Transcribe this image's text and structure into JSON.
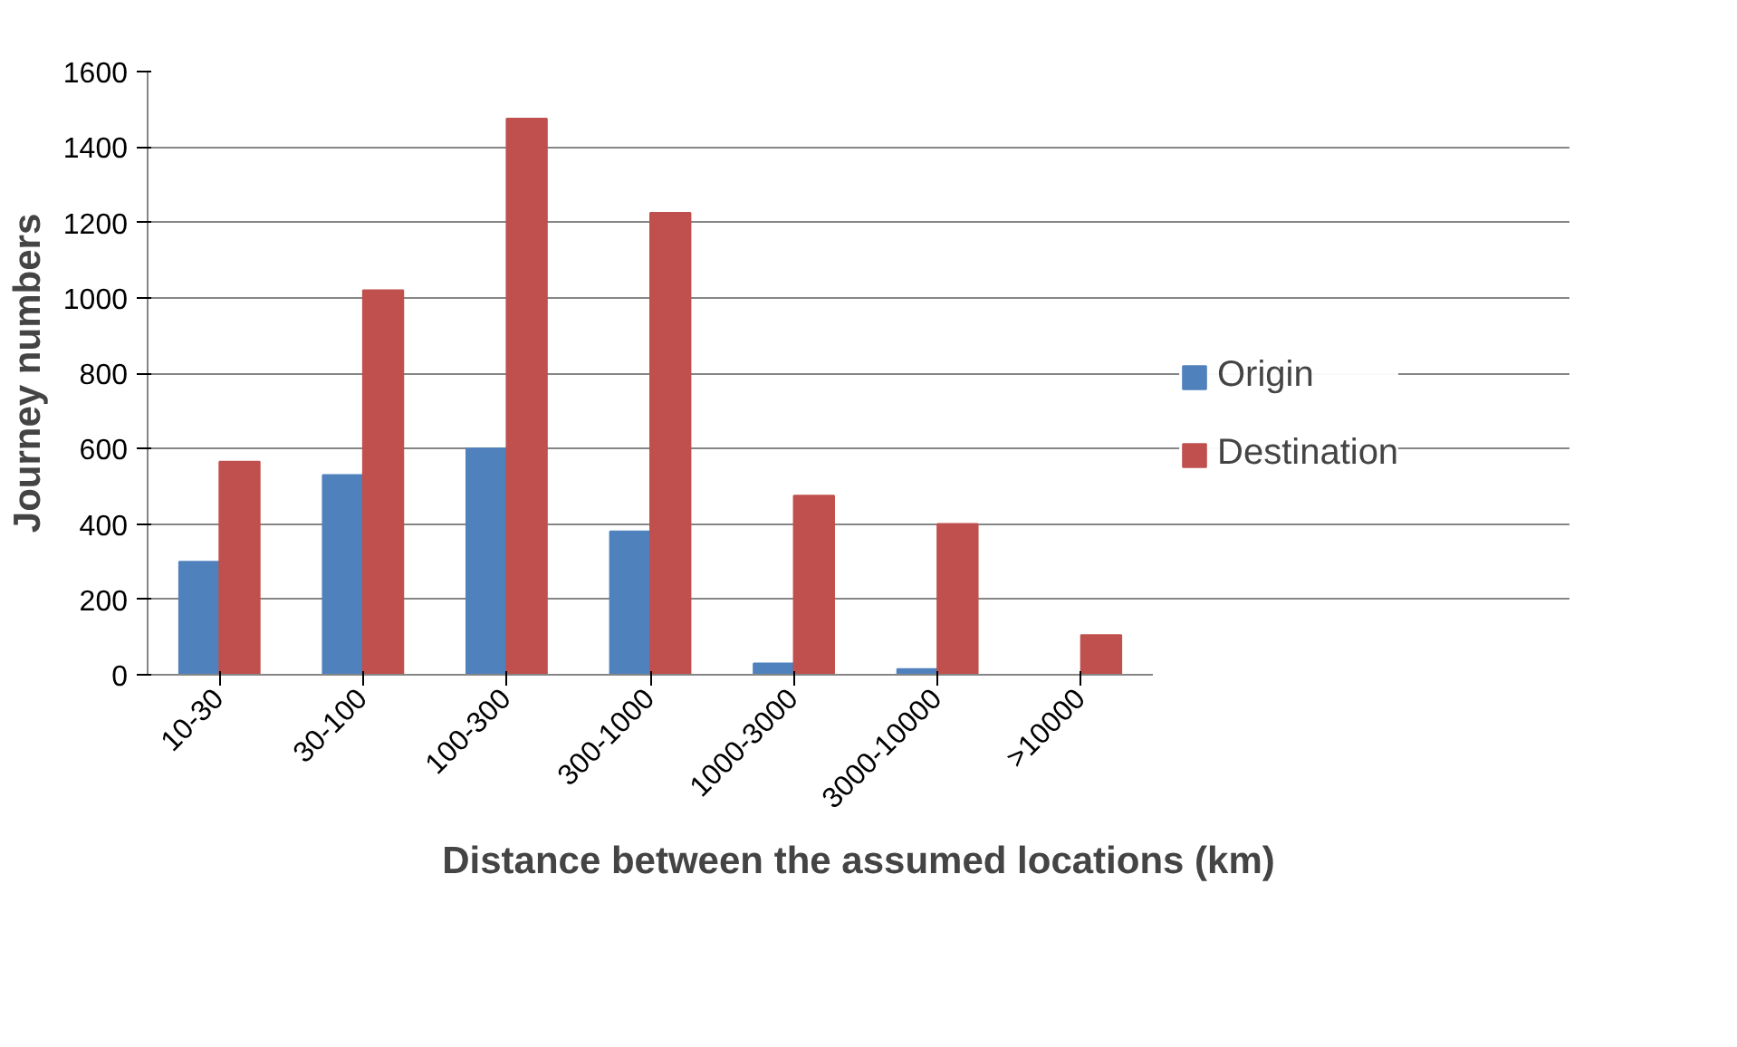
{
  "chart_data": {
    "type": "bar",
    "xlabel": "Distance between the assumed locations (km)",
    "ylabel": "Journey numbers",
    "categories": [
      "10-30",
      "30-100",
      "100-300",
      "300-1000",
      "1000-3000",
      "3000-10000",
      ">10000"
    ],
    "series": [
      {
        "name": "Origin",
        "color": "#4f81bd",
        "values": [
          300,
          530,
          600,
          380,
          30,
          15,
          0
        ]
      },
      {
        "name": "Destination",
        "color": "#c0504d",
        "values": [
          565,
          1020,
          1475,
          1225,
          475,
          400,
          105
        ]
      }
    ],
    "ylim": [
      0,
      1600
    ],
    "yticks": [
      0,
      200,
      400,
      600,
      800,
      1000,
      1200,
      1400,
      1600
    ],
    "grid": "y",
    "legend": "right"
  }
}
